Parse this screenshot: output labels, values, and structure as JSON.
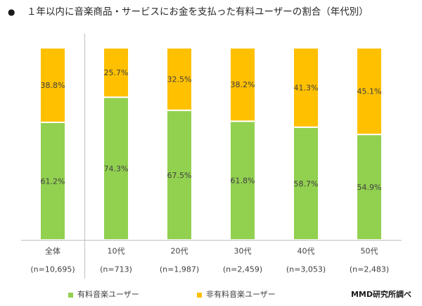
{
  "header": {
    "bullet": "●"
  },
  "chart_data": {
    "type": "bar",
    "stacked": true,
    "percent_stacked": true,
    "title": "１年以内に音楽商品・サービスにお金を支払った有料ユーザーの割合（年代別）",
    "xlabel": "",
    "ylabel": "",
    "categories": [
      "全体",
      "10代",
      "20代",
      "30代",
      "40代",
      "50代"
    ],
    "category_notes": [
      "(n=10,695)",
      "(n=713)",
      "(n=1,987)",
      "(n=2,459)",
      "(n=3,053)",
      "(n=2,483)"
    ],
    "series": [
      {
        "name": "有料音楽ユーザー",
        "color": "#92D050",
        "values": [
          61.2,
          74.3,
          67.5,
          61.8,
          58.7,
          54.9
        ]
      },
      {
        "name": "非有料音楽ユーザー",
        "color": "#FFC000",
        "values": [
          38.8,
          25.7,
          32.5,
          38.2,
          41.3,
          45.1
        ]
      }
    ],
    "value_suffix": "%",
    "data_labels": true,
    "ylim": [
      0,
      100
    ],
    "y_axis_visible": false,
    "grid": false,
    "legend": "bottom",
    "source_note": "MMD研究所調べ"
  }
}
